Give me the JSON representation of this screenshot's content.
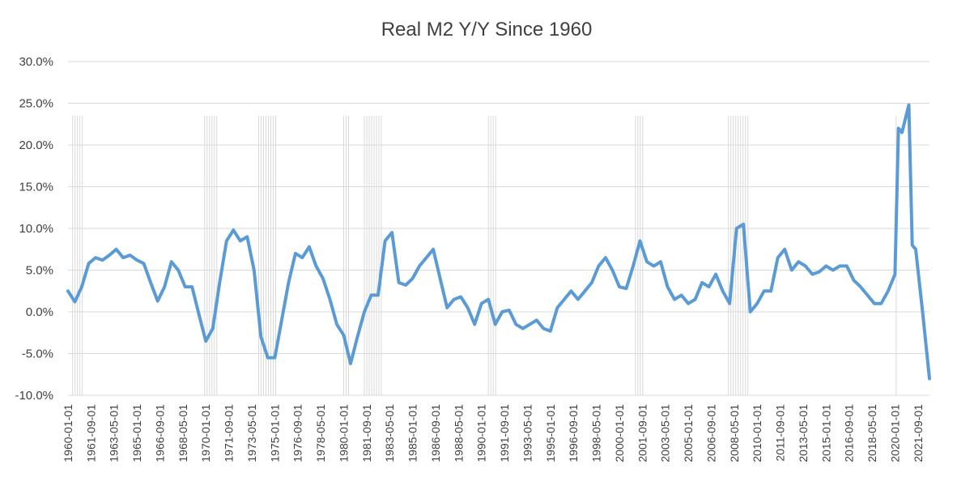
{
  "chart_data": {
    "type": "line",
    "title": "Real M2 Y/Y Since 1960",
    "xlabel": "",
    "ylabel": "",
    "ylim": [
      -10,
      30
    ],
    "y_ticks": [
      "30.0%",
      "25.0%",
      "20.0%",
      "15.0%",
      "10.0%",
      "5.0%",
      "0.0%",
      "-5.0%",
      "-10.0%"
    ],
    "x_ticks": [
      "1960-01-01",
      "1961-09-01",
      "1963-05-01",
      "1965-01-01",
      "1966-09-01",
      "1968-05-01",
      "1970-01-01",
      "1971-09-01",
      "1973-05-01",
      "1975-01-01",
      "1976-09-01",
      "1978-05-01",
      "1980-01-01",
      "1981-09-01",
      "1983-05-01",
      "1985-01-01",
      "1986-09-01",
      "1988-05-01",
      "1990-01-01",
      "1991-09-01",
      "1993-05-01",
      "1995-01-01",
      "1996-09-01",
      "1998-05-01",
      "2000-01-01",
      "2001-09-01",
      "2003-05-01",
      "2005-01-01",
      "2006-09-01",
      "2008-05-01",
      "2010-01-01",
      "2011-09-01",
      "2013-05-01",
      "2015-01-01",
      "2016-09-01",
      "2018-05-01",
      "2020-01-01",
      "2021-09-01"
    ],
    "x_range": [
      "1960-01-01",
      "2022-07-01"
    ],
    "grid": true,
    "colors": {
      "line": "#5B9BD5",
      "recession": "#D9D9D9",
      "grid": "#D9D9D9"
    },
    "recessions": [
      [
        "1960-05-01",
        "1961-02-01"
      ],
      [
        "1969-12-01",
        "1970-11-01"
      ],
      [
        "1973-11-01",
        "1975-03-01"
      ],
      [
        "1980-01-01",
        "1980-07-01"
      ],
      [
        "1981-07-01",
        "1982-11-01"
      ],
      [
        "1990-07-01",
        "1991-03-01"
      ],
      [
        "2001-03-01",
        "2001-11-01"
      ],
      [
        "2007-12-01",
        "2009-06-01"
      ],
      [
        "2020-02-01",
        "2020-04-01"
      ]
    ],
    "series": [
      {
        "x": [
          "1960-01-01",
          "1960-07-01",
          "1961-01-01",
          "1961-07-01",
          "1962-01-01",
          "1962-07-01",
          "1963-01-01",
          "1963-07-01",
          "1964-01-01",
          "1964-07-01",
          "1965-01-01",
          "1965-07-01",
          "1966-01-01",
          "1966-07-01",
          "1967-01-01",
          "1967-07-01",
          "1968-01-01",
          "1968-07-01",
          "1969-01-01",
          "1969-07-01",
          "1970-01-01",
          "1970-07-01",
          "1971-01-01",
          "1971-07-01",
          "1972-01-01",
          "1972-07-01",
          "1973-01-01",
          "1973-07-01",
          "1974-01-01",
          "1974-07-01",
          "1975-01-01",
          "1975-07-01",
          "1976-01-01",
          "1976-07-01",
          "1977-01-01",
          "1977-07-01",
          "1978-01-01",
          "1978-07-01",
          "1979-01-01",
          "1979-07-01",
          "1980-01-01",
          "1980-07-01",
          "1981-01-01",
          "1981-07-01",
          "1982-01-01",
          "1982-07-01",
          "1983-01-01",
          "1983-07-01",
          "1984-01-01",
          "1984-07-01",
          "1985-01-01",
          "1985-07-01",
          "1986-01-01",
          "1986-07-01",
          "1987-01-01",
          "1987-07-01",
          "1988-01-01",
          "1988-07-01",
          "1989-01-01",
          "1989-07-01",
          "1990-01-01",
          "1990-07-01",
          "1991-01-01",
          "1991-07-01",
          "1992-01-01",
          "1992-07-01",
          "1993-01-01",
          "1993-07-01",
          "1994-01-01",
          "1994-07-01",
          "1995-01-01",
          "1995-07-01",
          "1996-01-01",
          "1996-07-01",
          "1997-01-01",
          "1997-07-01",
          "1998-01-01",
          "1998-07-01",
          "1999-01-01",
          "1999-07-01",
          "2000-01-01",
          "2000-07-01",
          "2001-01-01",
          "2001-07-01",
          "2002-01-01",
          "2002-07-01",
          "2003-01-01",
          "2003-07-01",
          "2004-01-01",
          "2004-07-01",
          "2005-01-01",
          "2005-07-01",
          "2006-01-01",
          "2006-07-01",
          "2007-01-01",
          "2007-07-01",
          "2008-01-01",
          "2008-07-01",
          "2009-01-01",
          "2009-07-01",
          "2010-01-01",
          "2010-07-01",
          "2011-01-01",
          "2011-07-01",
          "2012-01-01",
          "2012-07-01",
          "2013-01-01",
          "2013-07-01",
          "2014-01-01",
          "2014-07-01",
          "2015-01-01",
          "2015-07-01",
          "2016-01-01",
          "2016-07-01",
          "2017-01-01",
          "2017-07-01",
          "2018-01-01",
          "2018-07-01",
          "2019-01-01",
          "2019-07-01",
          "2020-01-01",
          "2020-04-01",
          "2020-07-01",
          "2021-01-01",
          "2021-04-01",
          "2021-07-01",
          "2022-01-01",
          "2022-07-01"
        ],
        "values": [
          2.5,
          1.2,
          3.0,
          5.8,
          6.5,
          6.2,
          6.8,
          7.5,
          6.5,
          6.8,
          6.2,
          5.8,
          3.5,
          1.3,
          3.0,
          6.0,
          5.0,
          3.0,
          3.0,
          -0.3,
          -3.5,
          -2.0,
          3.5,
          8.5,
          9.8,
          8.5,
          9.0,
          5.0,
          -3.0,
          -5.5,
          -5.5,
          -1.0,
          3.5,
          7.0,
          6.5,
          7.8,
          5.5,
          4.0,
          1.5,
          -1.5,
          -2.8,
          -6.2,
          -3.0,
          0.0,
          2.0,
          2.0,
          8.5,
          9.5,
          3.5,
          3.2,
          4.0,
          5.5,
          6.5,
          7.5,
          4.0,
          0.5,
          1.5,
          1.8,
          0.5,
          -1.5,
          1.0,
          1.5,
          -1.5,
          0.0,
          0.2,
          -1.5,
          -2.0,
          -1.5,
          -1.0,
          -2.0,
          -2.3,
          0.5,
          1.5,
          2.5,
          1.5,
          2.5,
          3.5,
          5.5,
          6.5,
          5.0,
          3.0,
          2.8,
          5.5,
          8.5,
          6.0,
          5.5,
          6.0,
          3.0,
          1.5,
          2.0,
          1.0,
          1.5,
          3.5,
          3.0,
          4.5,
          2.5,
          1.0,
          10.0,
          10.5,
          0.0,
          1.0,
          2.5,
          2.5,
          6.5,
          7.5,
          5.0,
          6.0,
          5.5,
          4.5,
          4.8,
          5.5,
          5.0,
          5.5,
          5.5,
          3.8,
          3.0,
          2.0,
          1.0,
          1.0,
          2.5,
          4.5,
          22.0,
          21.5,
          24.8,
          8.0,
          7.5,
          0.0,
          -8.0
        ]
      }
    ]
  }
}
